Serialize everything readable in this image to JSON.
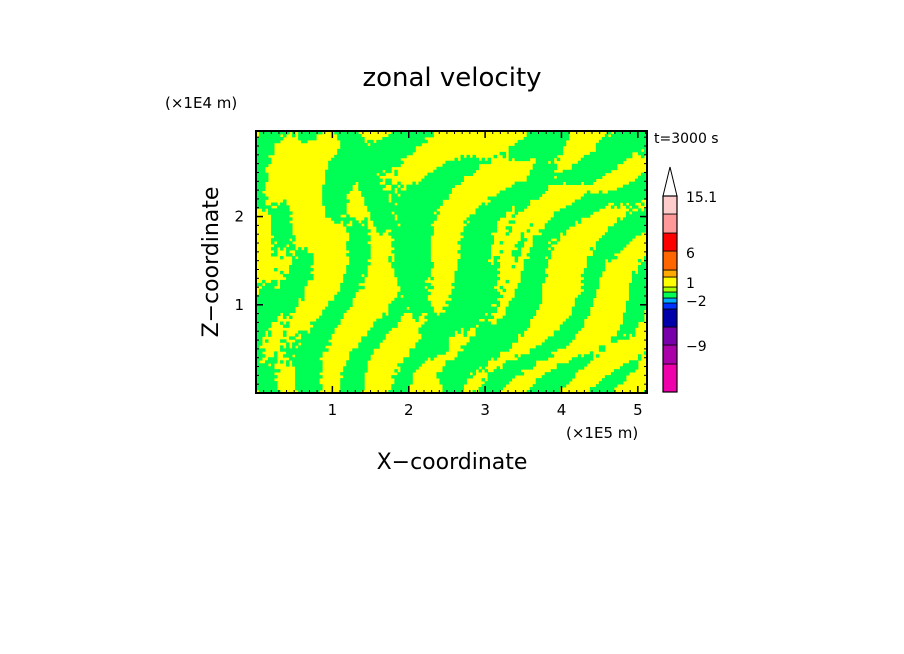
{
  "chart_data": {
    "type": "heatmap",
    "title": "zonal velocity",
    "xlabel": "X−coordinate",
    "ylabel": "Z−coordinate",
    "x_unit": "(×1E5 m)",
    "y_unit": "(×1E4 m)",
    "time_label": "t=3000 s",
    "xlim": [
      0,
      5.12
    ],
    "ylim": [
      0,
      2.97
    ],
    "x_ticks": [
      "1",
      "2",
      "3",
      "4",
      "5"
    ],
    "y_ticks": [
      "1",
      "2"
    ],
    "colors": {
      "primary_positive": "#ffff00",
      "primary_negative": "#00ff55"
    },
    "colorbar": {
      "levels": [
        {
          "color": "#ee00aa"
        },
        {
          "color": "#aa00aa"
        },
        {
          "color": "#7700aa"
        },
        {
          "color": "#0000aa"
        },
        {
          "color": "#0033ff"
        },
        {
          "color": "#00aaff"
        },
        {
          "color": "#00ff55"
        },
        {
          "color": "#aaff00"
        },
        {
          "color": "#ffff00"
        },
        {
          "color": "#ffaa00"
        },
        {
          "color": "#ff6600"
        },
        {
          "color": "#ff0000"
        },
        {
          "color": "#ff9999"
        },
        {
          "color": "#ffcccc"
        },
        {
          "color": "#ffffff"
        }
      ],
      "tick_labels": [
        "15.1",
        "6",
        "1",
        "−2",
        "−9"
      ]
    }
  }
}
